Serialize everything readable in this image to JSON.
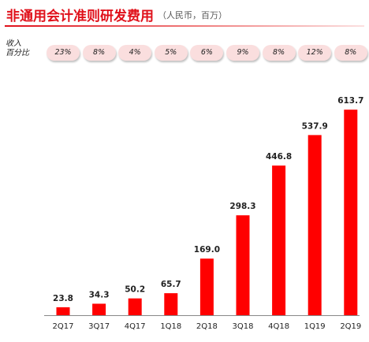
{
  "title": "非通用会计准则研发费用",
  "subtitle": "（人民币，百万）",
  "ratio_label": [
    "收入",
    "百分比"
  ],
  "colors": {
    "bar": "#ff0000",
    "title": "#e0101a",
    "pill": "#fadede"
  },
  "chart_data": {
    "type": "bar",
    "categories": [
      "2Q17",
      "3Q17",
      "4Q17",
      "1Q18",
      "2Q18",
      "3Q18",
      "4Q18",
      "1Q19",
      "2Q19"
    ],
    "values": [
      23.8,
      34.3,
      50.2,
      65.7,
      169.0,
      298.3,
      446.8,
      537.9,
      613.7
    ],
    "value_labels": [
      "23.8",
      "34.3",
      "50.2",
      "65.7",
      "169.0",
      "298.3",
      "446.8",
      "537.9",
      "613.7"
    ],
    "revenue_pct": [
      "23%",
      "8%",
      "4%",
      "5%",
      "6%",
      "9%",
      "8%",
      "12%",
      "8%"
    ],
    "ylim": [
      0,
      640
    ],
    "grid": false,
    "legend": "none"
  }
}
